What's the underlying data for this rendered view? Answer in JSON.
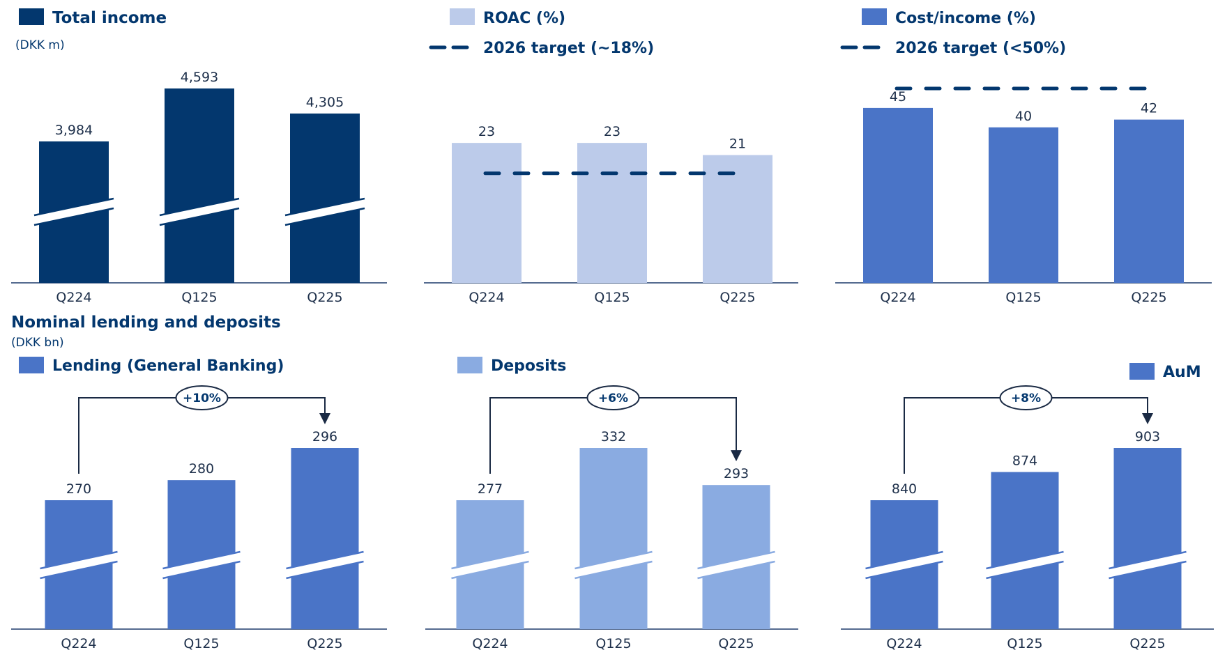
{
  "colors": {
    "navy": "#03376e",
    "lavender": "#bccbea",
    "royal": "#4a74c7",
    "sky": "#8aabe1",
    "axis": "#1d3a6b",
    "break_stroke": "#ffffff"
  },
  "top_section": {
    "title": "Total income",
    "unit": "(DKK m)",
    "roac_legend": "ROAC (%)",
    "roac_target_legend": "2026 target (~18%)",
    "ci_legend": "Cost/income (%)",
    "ci_target_legend": "2026 target (<50%)"
  },
  "bottom_section": {
    "title": "Nominal lending and deposits",
    "unit": "(DKK bn)",
    "lending_legend": "Lending (General Banking)",
    "deposits_legend": "Deposits",
    "aum_legend": "AuM"
  },
  "chart_data": [
    {
      "id": "total-income",
      "type": "bar",
      "categories": [
        "Q224",
        "Q125",
        "Q225"
      ],
      "values": [
        3984,
        4593,
        4305
      ],
      "value_labels": [
        "3,984",
        "4,593",
        "4,305"
      ],
      "series": [
        {
          "name": "Total income",
          "values": [
            3984,
            4593,
            4305
          ]
        }
      ],
      "axis_break": true,
      "color": "#03376e"
    },
    {
      "id": "roac",
      "type": "bar",
      "categories": [
        "Q224",
        "Q125",
        "Q225"
      ],
      "values": [
        23,
        23,
        21
      ],
      "value_labels": [
        "23",
        "23",
        "21"
      ],
      "series": [
        {
          "name": "ROAC (%)",
          "values": [
            23,
            23,
            21
          ]
        }
      ],
      "target": {
        "name": "2026 target (~18%)",
        "value": 18
      },
      "ylim": [
        0,
        45
      ],
      "color": "#bccbea"
    },
    {
      "id": "cost-income",
      "type": "bar",
      "categories": [
        "Q224",
        "Q125",
        "Q225"
      ],
      "values": [
        45,
        40,
        42
      ],
      "value_labels": [
        "45",
        "40",
        "42"
      ],
      "series": [
        {
          "name": "Cost/income (%)",
          "values": [
            45,
            40,
            42
          ]
        }
      ],
      "target": {
        "name": "2026 target (<50%)",
        "value": 50
      },
      "ylim": [
        0,
        50
      ],
      "color": "#4a74c7"
    },
    {
      "id": "lending",
      "type": "bar",
      "categories": [
        "Q224",
        "Q125",
        "Q225"
      ],
      "values": [
        270,
        280,
        296
      ],
      "value_labels": [
        "270",
        "280",
        "296"
      ],
      "series": [
        {
          "name": "Lending (General Banking)",
          "values": [
            270,
            280,
            296
          ]
        }
      ],
      "change_label": "+10%",
      "axis_break": true,
      "color": "#4a74c7"
    },
    {
      "id": "deposits",
      "type": "bar",
      "categories": [
        "Q224",
        "Q125",
        "Q225"
      ],
      "values": [
        277,
        332,
        293
      ],
      "value_labels": [
        "277",
        "332",
        "293"
      ],
      "series": [
        {
          "name": "Deposits",
          "values": [
            277,
            332,
            293
          ]
        }
      ],
      "change_label": "+6%",
      "axis_break": true,
      "color": "#8aabe1"
    },
    {
      "id": "aum",
      "type": "bar",
      "categories": [
        "Q224",
        "Q125",
        "Q225"
      ],
      "values": [
        840,
        874,
        903
      ],
      "value_labels": [
        "840",
        "874",
        "903"
      ],
      "series": [
        {
          "name": "AuM",
          "values": [
            840,
            874,
            903
          ]
        }
      ],
      "change_label": "+8%",
      "axis_break": true,
      "color": "#4a74c7"
    }
  ]
}
